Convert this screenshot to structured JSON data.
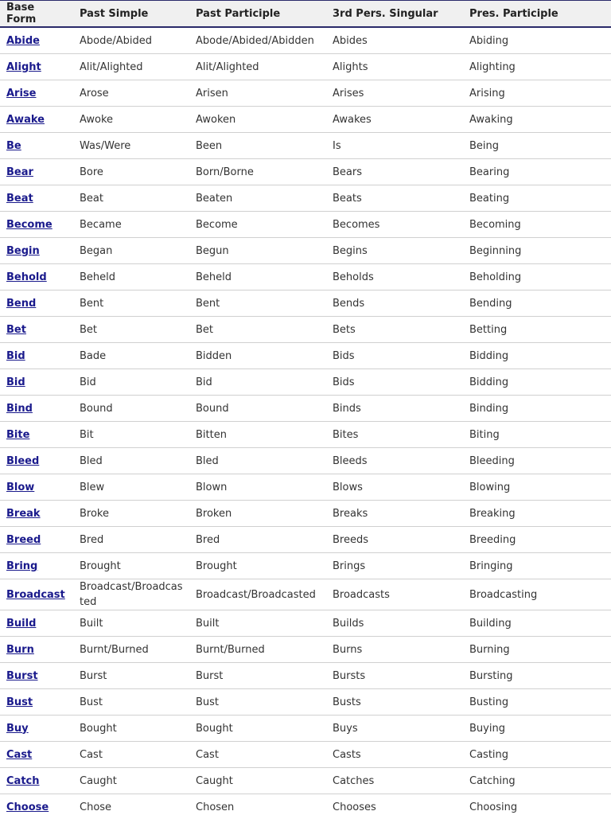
{
  "table": {
    "header": [
      "Base Form",
      "Past Simple",
      "Past Participle",
      "3rd Pers. Singular",
      "Pres. Participle"
    ],
    "rows": [
      [
        "Abide",
        "Abode/Abided",
        "Abode/Abided/Abidden",
        "Abides",
        "Abiding"
      ],
      [
        "Alight",
        "Alit/Alighted",
        "Alit/Alighted",
        "Alights",
        "Alighting"
      ],
      [
        "Arise",
        "Arose",
        "Arisen",
        "Arises",
        "Arising"
      ],
      [
        "Awake",
        "Awoke",
        "Awoken",
        "Awakes",
        "Awaking"
      ],
      [
        "Be",
        "Was/Were",
        "Been",
        "Is",
        "Being"
      ],
      [
        "Bear",
        "Bore",
        "Born/Borne",
        "Bears",
        "Bearing"
      ],
      [
        "Beat",
        "Beat",
        "Beaten",
        "Beats",
        "Beating"
      ],
      [
        "Become",
        "Became",
        "Become",
        "Becomes",
        "Becoming"
      ],
      [
        "Begin",
        "Began",
        "Begun",
        "Begins",
        "Beginning"
      ],
      [
        "Behold",
        "Beheld",
        "Beheld",
        "Beholds",
        "Beholding"
      ],
      [
        "Bend",
        "Bent",
        "Bent",
        "Bends",
        "Bending"
      ],
      [
        "Bet",
        "Bet",
        "Bet",
        "Bets",
        "Betting"
      ],
      [
        "Bid",
        "Bade",
        "Bidden",
        "Bids",
        "Bidding"
      ],
      [
        "Bid",
        "Bid",
        "Bid",
        "Bids",
        "Bidding"
      ],
      [
        "Bind",
        "Bound",
        "Bound",
        "Binds",
        "Binding"
      ],
      [
        "Bite",
        "Bit",
        "Bitten",
        "Bites",
        "Biting"
      ],
      [
        "Bleed",
        "Bled",
        "Bled",
        "Bleeds",
        "Bleeding"
      ],
      [
        "Blow",
        "Blew",
        "Blown",
        "Blows",
        "Blowing"
      ],
      [
        "Break",
        "Broke",
        "Broken",
        "Breaks",
        "Breaking"
      ],
      [
        "Breed",
        "Bred",
        "Bred",
        "Breeds",
        "Breeding"
      ],
      [
        "Bring",
        "Brought",
        "Brought",
        "Brings",
        "Bringing"
      ],
      [
        "Broadcast",
        "Broadcast/Broadcasted",
        "Broadcast/Broadcasted",
        "Broadcasts",
        "Broadcasting"
      ],
      [
        "Build",
        "Built",
        "Built",
        "Builds",
        "Building"
      ],
      [
        "Burn",
        "Burnt/Burned",
        "Burnt/Burned",
        "Burns",
        "Burning"
      ],
      [
        "Burst",
        "Burst",
        "Burst",
        "Bursts",
        "Bursting"
      ],
      [
        "Bust",
        "Bust",
        "Bust",
        "Busts",
        "Busting"
      ],
      [
        "Buy",
        "Bought",
        "Bought",
        "Buys",
        "Buying"
      ],
      [
        "Cast",
        "Cast",
        "Cast",
        "Casts",
        "Casting"
      ],
      [
        "Catch",
        "Caught",
        "Caught",
        "Catches",
        "Catching"
      ],
      [
        "Choose",
        "Chose",
        "Chosen",
        "Chooses",
        "Choosing"
      ]
    ]
  }
}
